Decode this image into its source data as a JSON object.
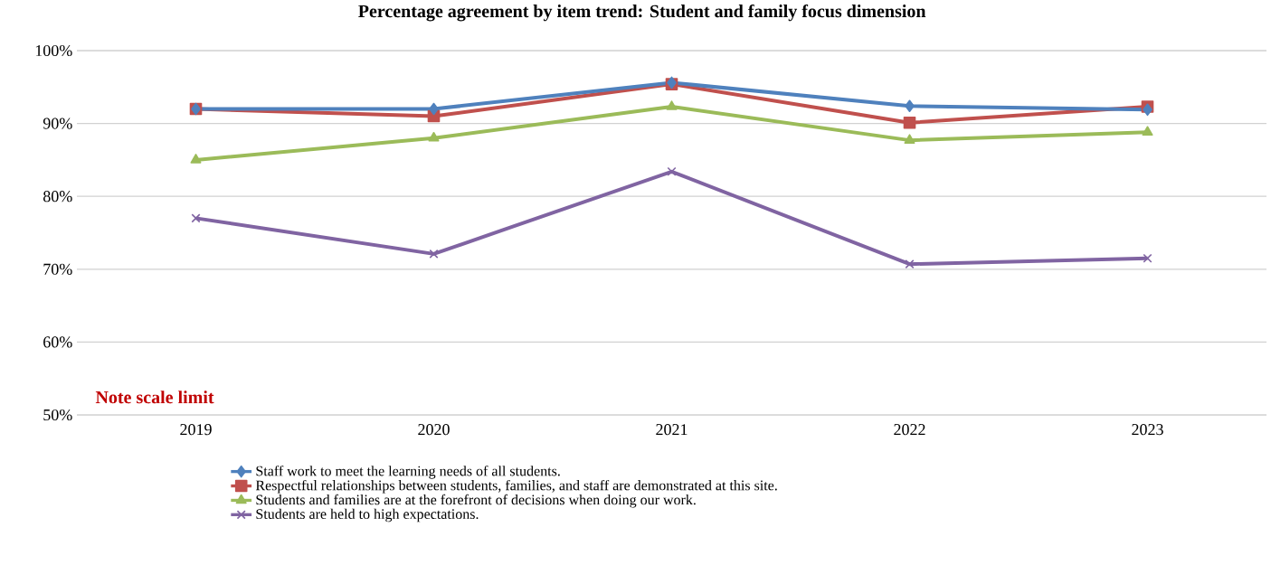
{
  "chart_data": {
    "type": "line",
    "title": "Percentage agreement by item trend: Student and family focus dimension",
    "categories": [
      "2019",
      "2020",
      "2021",
      "2022",
      "2023"
    ],
    "series": [
      {
        "name": "Staff work to meet the learning needs of all students.",
        "color": "#4f81bd",
        "marker": "diamond",
        "values": [
          92,
          92,
          95.6,
          92.4,
          91.9
        ]
      },
      {
        "name": "Respectful relationships between students, families, and staff are demonstrated at this site.",
        "color": "#c0504d",
        "marker": "square",
        "values": [
          92,
          91,
          95.4,
          90.1,
          92.3
        ]
      },
      {
        "name": "Students and families are at the forefront of decisions when doing our work.",
        "color": "#9bbb59",
        "marker": "triangle",
        "values": [
          85,
          88,
          92.3,
          87.7,
          88.8
        ]
      },
      {
        "name": "Students are held to high expectations.",
        "color": "#8064a2",
        "marker": "cross",
        "values": [
          77,
          72.1,
          83.4,
          70.7,
          71.5
        ]
      }
    ],
    "ylim": [
      50,
      100
    ],
    "yticks": [
      {
        "value": 50,
        "label": "50%"
      },
      {
        "value": 60,
        "label": "60%"
      },
      {
        "value": 70,
        "label": "70%"
      },
      {
        "value": 80,
        "label": "80%"
      },
      {
        "value": 90,
        "label": "90%"
      },
      {
        "value": 100,
        "label": "100%"
      }
    ],
    "grid": "y",
    "legend": "bottom",
    "line_style": "solid",
    "annotations": [
      "Note scale limit"
    ]
  }
}
